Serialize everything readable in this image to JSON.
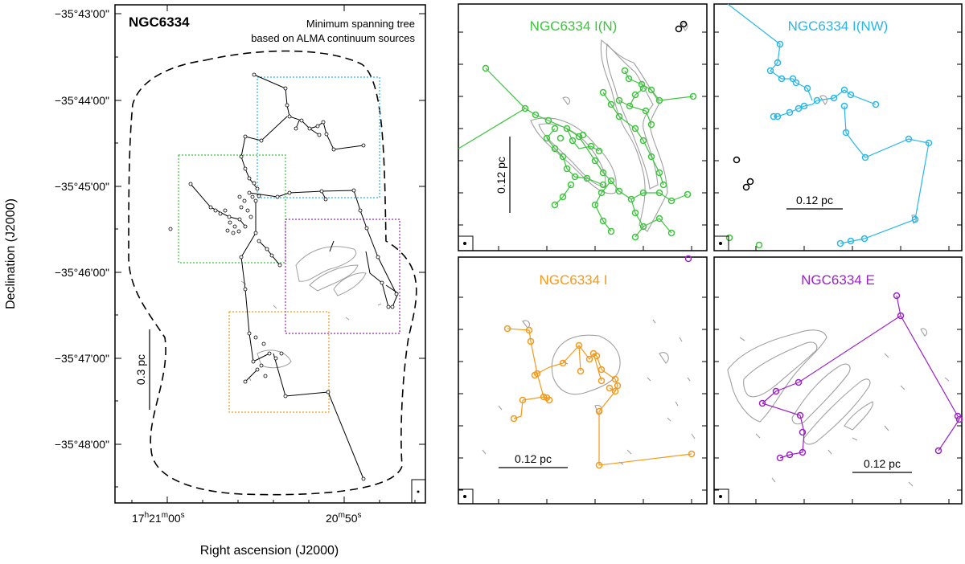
{
  "main_panel": {
    "title": "NGC6334",
    "subtitle_line1": "Minimum spanning tree",
    "subtitle_line2": "based on ALMA continuum sources",
    "y_axis_label": "Declination (J2000)",
    "x_axis_label": "Right ascension (J2000)",
    "dec_ticks": [
      "−35°43'00\"",
      "−35°44'00\"",
      "−35°45'00\"",
      "−35°46'00\"",
      "−35°47'00\"",
      "−35°48'00\""
    ],
    "ra_ticks": [
      {
        "main": "17",
        "sup1": "h",
        "mid": "21",
        "sup2": "m",
        "end": "00",
        "sup3": "s"
      },
      {
        "main": "20",
        "sup1": "m",
        "mid": "50",
        "sup2": "s",
        "end": "",
        "sup3": ""
      }
    ],
    "scalebar_label": "0.3 pc"
  },
  "subpanels": [
    {
      "id": "n",
      "label": "NGC6334 I(N)",
      "color": "#3cc43c",
      "scalebar_label": "0.12 pc"
    },
    {
      "id": "nw",
      "label": "NGC6334 I(NW)",
      "color": "#29b6e8",
      "scalebar_label": "0.12 pc"
    },
    {
      "id": "i",
      "label": "NGC6334 I",
      "color": "#f39a1c",
      "scalebar_label": "0.12 pc"
    },
    {
      "id": "e",
      "label": "NGC6334 E",
      "color": "#9b23c6",
      "scalebar_label": "0.12 pc"
    }
  ],
  "colors": {
    "tree": "#000000",
    "contour": "#a0a0a0",
    "box_n": "#3cc43c",
    "box_nw": "#29b6e8",
    "box_i": "#f39a1c",
    "box_e": "#9b23c6"
  }
}
